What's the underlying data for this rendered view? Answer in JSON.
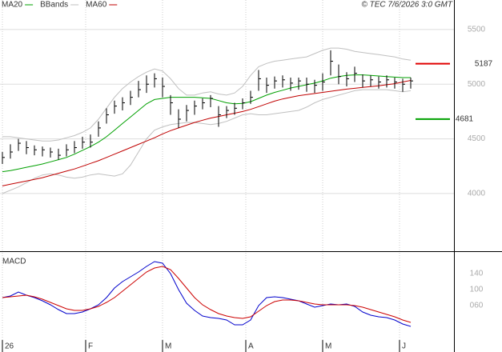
{
  "chart_data": [
    {
      "type": "ohlc",
      "credit": "© TEC 7/6/2026 3:0 GMT",
      "xlim": [
        -0.3,
        56.4
      ],
      "xticks": [
        0,
        10.4,
        20,
        30.4,
        40,
        49.6
      ],
      "ylim": [
        3480,
        5770
      ],
      "yticks": [
        4000,
        4500,
        5000,
        5500
      ],
      "grid": true,
      "bar_color": "#000000",
      "high": [
        4380,
        4450,
        4500,
        4480,
        4440,
        4430,
        4420,
        4410,
        4450,
        4480,
        4520,
        4540,
        4660,
        4780,
        4850,
        4880,
        4940,
        5030,
        5080,
        5100,
        5060,
        4900,
        4770,
        4810,
        4850,
        4870,
        4900,
        4800,
        4800,
        4830,
        4870,
        4940,
        5130,
        5060,
        5070,
        5080,
        5060,
        5060,
        5060,
        5040,
        5100,
        5310,
        5180,
        5110,
        5160,
        5090,
        5080,
        5070,
        5080,
        5060,
        5050,
        5060
      ],
      "low": [
        4270,
        4320,
        4390,
        4360,
        4350,
        4340,
        4330,
        4310,
        4340,
        4370,
        4410,
        4420,
        4520,
        4640,
        4730,
        4760,
        4810,
        4880,
        4920,
        4970,
        4880,
        4720,
        4600,
        4660,
        4720,
        4770,
        4790,
        4610,
        4690,
        4720,
        4770,
        4820,
        4940,
        4920,
        4960,
        4970,
        4940,
        4950,
        4930,
        4920,
        4940,
        5080,
        5000,
        4980,
        5020,
        4970,
        4980,
        4960,
        4970,
        4960,
        4930,
        4960
      ],
      "close": [
        4330,
        4380,
        4460,
        4420,
        4400,
        4400,
        4380,
        4350,
        4400,
        4420,
        4470,
        4470,
        4600,
        4720,
        4800,
        4830,
        4880,
        4950,
        5000,
        5050,
        4980,
        4830,
        4680,
        4760,
        4800,
        4830,
        4870,
        4720,
        4760,
        4780,
        4830,
        4880,
        5050,
        4990,
        5030,
        5040,
        5010,
        5030,
        5000,
        4990,
        5020,
        5210,
        5070,
        5050,
        5100,
        5030,
        5040,
        5020,
        5040,
        5020,
        5000,
        5030
      ],
      "series": [
        {
          "name": "MA20",
          "color": "#00a000",
          "values": [
            4200,
            4210,
            4225,
            4240,
            4255,
            4270,
            4290,
            4310,
            4330,
            4360,
            4395,
            4430,
            4470,
            4520,
            4580,
            4640,
            4700,
            4760,
            4820,
            4860,
            4870,
            4880,
            4880,
            4880,
            4880,
            4875,
            4870,
            4850,
            4830,
            4820,
            4825,
            4840,
            4870,
            4900,
            4925,
            4945,
            4965,
            4980,
            4995,
            5010,
            5030,
            5055,
            5070,
            5080,
            5085,
            5085,
            5080,
            5075,
            5070,
            5065,
            5060,
            5060
          ]
        },
        {
          "name": "BBands",
          "color": "#c0c0c0",
          "upper": [
            4520,
            4520,
            4510,
            4500,
            4490,
            4480,
            4480,
            4490,
            4510,
            4530,
            4560,
            4600,
            4680,
            4780,
            4880,
            4960,
            5020,
            5070,
            5110,
            5140,
            5120,
            5050,
            4960,
            4900,
            4900,
            4920,
            4930,
            4910,
            4900,
            4920,
            4980,
            5080,
            5160,
            5190,
            5210,
            5220,
            5230,
            5240,
            5250,
            5280,
            5310,
            5330,
            5330,
            5320,
            5300,
            5290,
            5280,
            5270,
            5260,
            5250,
            5230,
            5220
          ],
          "lower": [
            4000,
            4030,
            4060,
            4100,
            4140,
            4170,
            4180,
            4170,
            4150,
            4140,
            4150,
            4170,
            4180,
            4170,
            4160,
            4180,
            4260,
            4380,
            4500,
            4580,
            4610,
            4630,
            4640,
            4650,
            4650,
            4640,
            4630,
            4640,
            4660,
            4690,
            4720,
            4730,
            4720,
            4720,
            4730,
            4740,
            4750,
            4760,
            4790,
            4830,
            4860,
            4880,
            4900,
            4920,
            4940,
            4950,
            4950,
            4950,
            4950,
            4940,
            4930,
            4940
          ]
        },
        {
          "name": "MA60",
          "color": "#c00000",
          "values": [
            4070,
            4085,
            4100,
            4115,
            4130,
            4145,
            4165,
            4185,
            4205,
            4225,
            4250,
            4275,
            4300,
            4330,
            4360,
            4390,
            4420,
            4450,
            4480,
            4510,
            4545,
            4575,
            4600,
            4625,
            4650,
            4670,
            4690,
            4705,
            4720,
            4735,
            4750,
            4770,
            4795,
            4820,
            4845,
            4865,
            4880,
            4895,
            4905,
            4915,
            4925,
            4935,
            4945,
            4955,
            4962,
            4970,
            4978,
            4985,
            4995,
            5005,
            5020,
            5035
          ]
        }
      ],
      "levels": [
        {
          "value": 5187,
          "color": "#e00000"
        },
        {
          "value": 4681,
          "color": "#00a000"
        }
      ]
    },
    {
      "type": "line",
      "title": "MACD",
      "xlim": [
        -0.3,
        56.4
      ],
      "xticks": [
        {
          "value": 0,
          "label": "26"
        },
        {
          "value": 10.4,
          "label": "F"
        },
        {
          "value": 20,
          "label": "M"
        },
        {
          "value": 30.4,
          "label": "A"
        },
        {
          "value": 40,
          "label": "M"
        },
        {
          "value": 49.6,
          "label": "J"
        }
      ],
      "ylim": [
        -26,
        192
      ],
      "yticks": [
        140,
        100,
        {
          "value": 60,
          "label": "060"
        }
      ],
      "series": [
        {
          "color": "#0000cc",
          "values": [
            80,
            84,
            94,
            86,
            80,
            72,
            62,
            50,
            40,
            40,
            44,
            52,
            62,
            80,
            104,
            120,
            132,
            144,
            158,
            170,
            166,
            140,
            100,
            66,
            48,
            34,
            30,
            28,
            24,
            12,
            12,
            24,
            60,
            80,
            82,
            80,
            76,
            72,
            64,
            56,
            60,
            64,
            62,
            64,
            58,
            44,
            36,
            32,
            30,
            24,
            14,
            8
          ]
        },
        {
          "color": "#cc0000",
          "values": [
            80,
            82,
            84,
            86,
            82,
            76,
            68,
            60,
            52,
            48,
            48,
            52,
            58,
            68,
            80,
            96,
            112,
            128,
            144,
            154,
            158,
            150,
            128,
            104,
            80,
            62,
            50,
            40,
            34,
            30,
            28,
            32,
            46,
            60,
            70,
            74,
            74,
            72,
            68,
            64,
            62,
            62,
            62,
            62,
            60,
            56,
            50,
            44,
            38,
            32,
            24,
            18
          ]
        }
      ]
    }
  ]
}
